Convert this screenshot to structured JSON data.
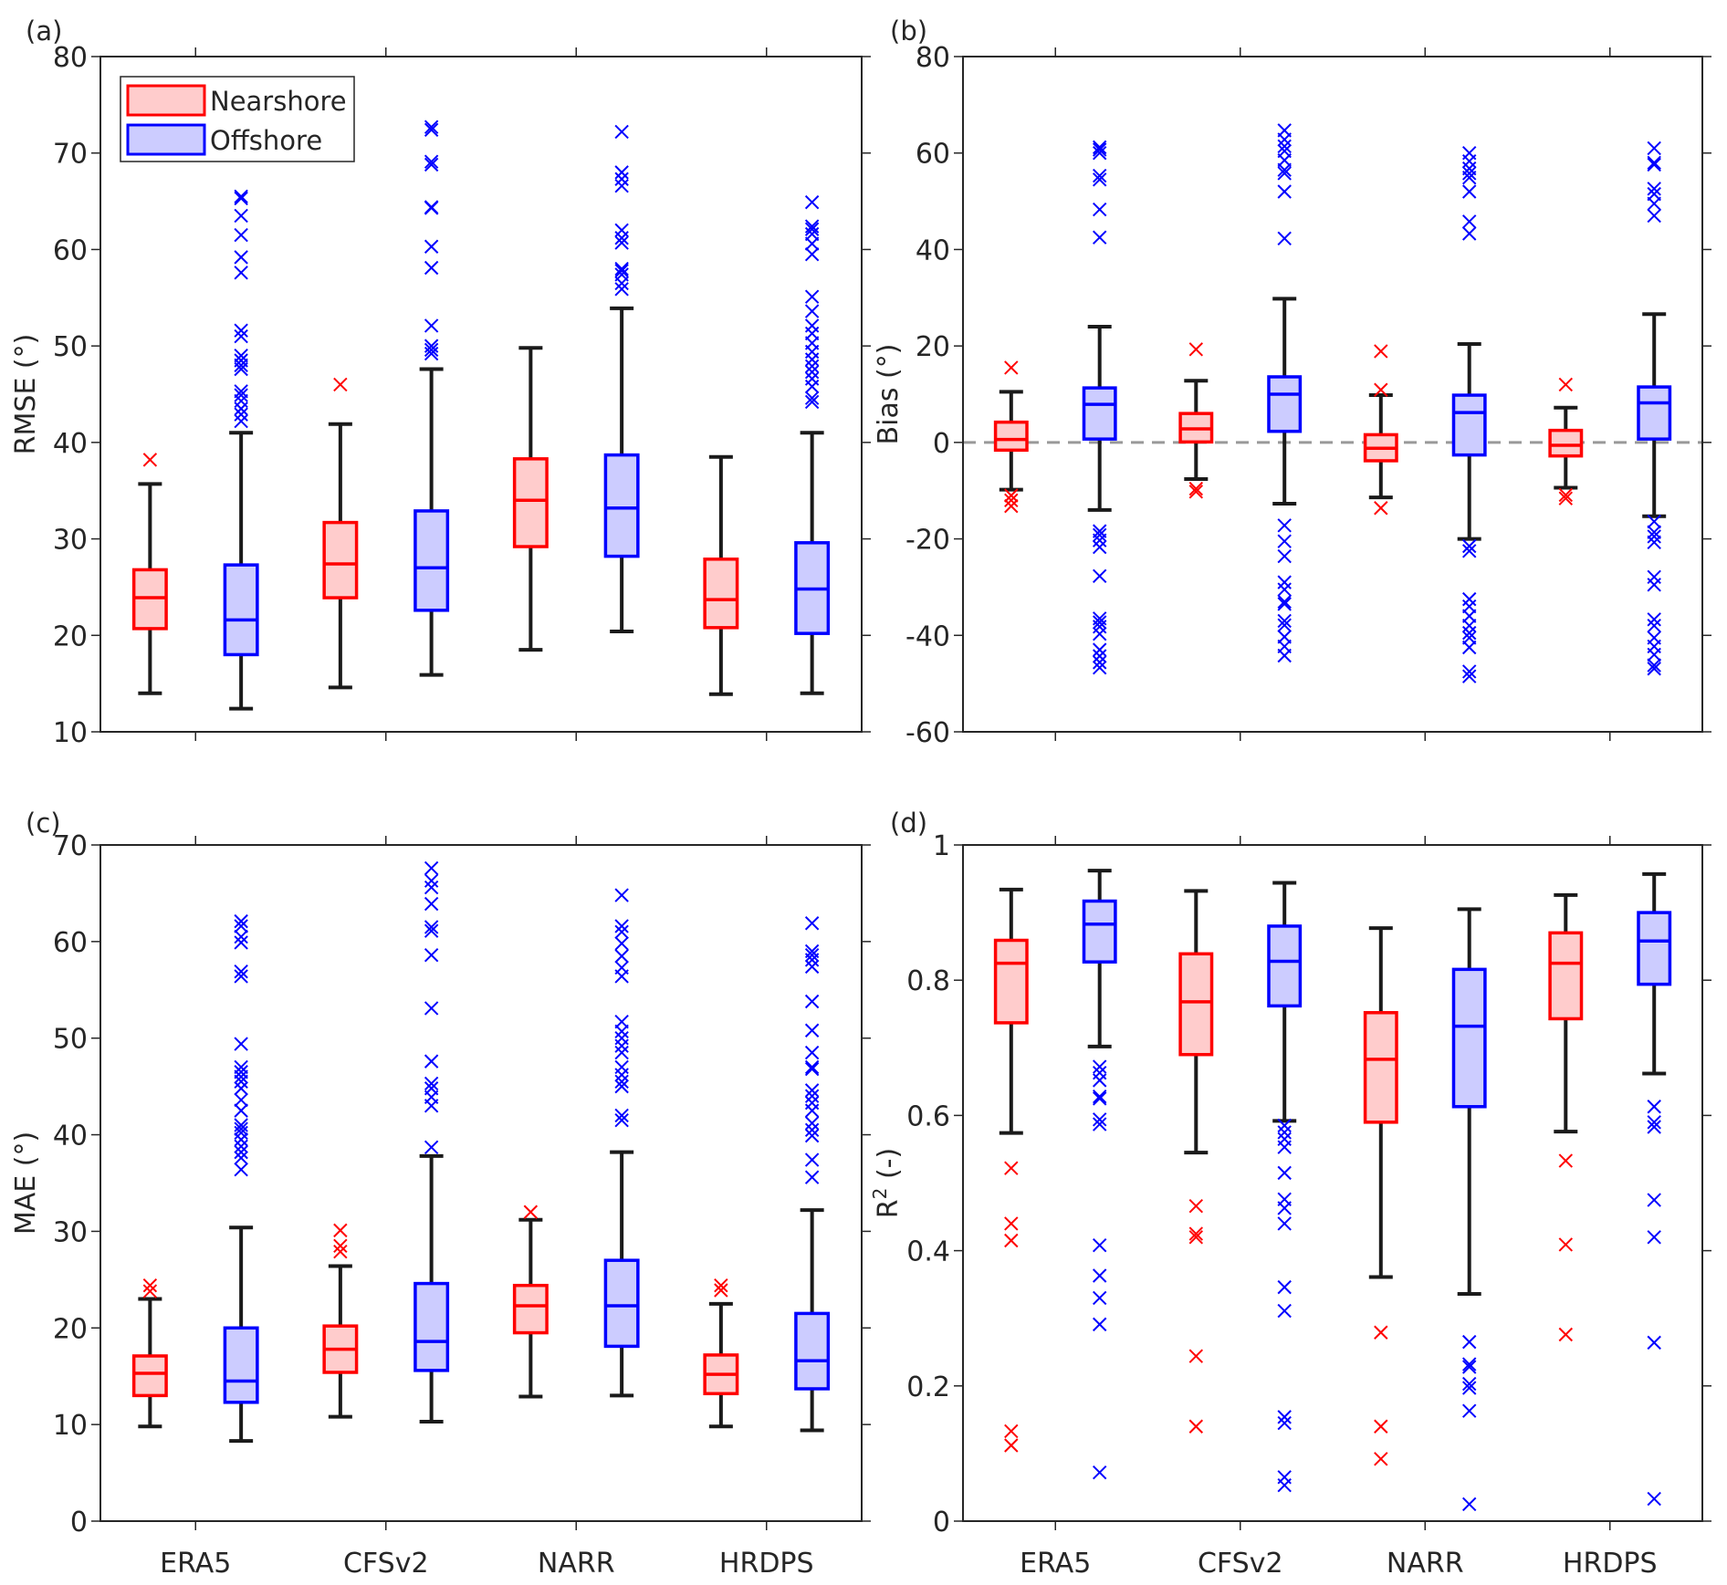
{
  "legend": {
    "entries": [
      {
        "label": "Nearshore",
        "edge": "#ff0000",
        "fill": "#ffcccc"
      },
      {
        "label": "Offshore",
        "edge": "#0000ff",
        "fill": "#ccccff"
      }
    ],
    "placement": "top-left of panel (a)"
  },
  "chart_data": [
    {
      "type": "box",
      "panel": "(a)",
      "ylabel": "RMSE (°)",
      "ylim": [
        10,
        80
      ],
      "yticks": [
        10,
        20,
        30,
        40,
        50,
        60,
        70,
        80
      ],
      "categories": [
        "ERA5",
        "CFSv2",
        "NARR",
        "HRDPS"
      ],
      "reference_line": null,
      "series": [
        {
          "name": "Nearshore",
          "boxes": [
            {
              "low": 14.0,
              "q1": 20.7,
              "median": 23.9,
              "q3": 26.8,
              "high": 35.7,
              "outliers": [
                38.2
              ]
            },
            {
              "low": 14.6,
              "q1": 23.9,
              "median": 27.4,
              "q3": 31.7,
              "high": 41.9,
              "outliers": [
                46.0
              ]
            },
            {
              "low": 18.5,
              "q1": 29.2,
              "median": 34.0,
              "q3": 38.3,
              "high": 49.8,
              "outliers": []
            },
            {
              "low": 13.9,
              "q1": 20.8,
              "median": 23.7,
              "q3": 27.9,
              "high": 38.5,
              "outliers": []
            }
          ]
        },
        {
          "name": "Offshore",
          "boxes": [
            {
              "low": 12.4,
              "q1": 18.0,
              "median": 21.6,
              "q3": 27.3,
              "high": 41.0,
              "outliers": [
                42.2,
                42.9,
                43.5,
                44.3,
                44.9,
                45.3,
                47.6,
                48.0,
                48.5,
                49.0,
                51.0,
                51.6,
                57.6,
                59.2,
                61.5,
                63.5,
                65.3,
                65.5
              ]
            },
            {
              "low": 15.9,
              "q1": 22.6,
              "median": 27.0,
              "q3": 32.9,
              "high": 47.6,
              "outliers": [
                49.2,
                49.6,
                50.0,
                52.1,
                58.1,
                60.3,
                64.3,
                64.4,
                68.8,
                69.1,
                72.4,
                72.7
              ]
            },
            {
              "low": 20.4,
              "q1": 28.2,
              "median": 33.2,
              "q3": 38.7,
              "high": 53.9,
              "outliers": [
                55.9,
                56.5,
                57.4,
                57.8,
                58.0,
                60.7,
                61.2,
                62.0,
                66.6,
                67.3,
                68.0,
                72.2
              ]
            },
            {
              "low": 14.0,
              "q1": 20.2,
              "median": 24.8,
              "q3": 29.6,
              "high": 41.0,
              "outliers": [
                44.2,
                44.6,
                45.8,
                46.6,
                47.3,
                47.9,
                48.6,
                49.4,
                50.3,
                51.3,
                52.1,
                53.6,
                55.1,
                59.5,
                60.6,
                61.6,
                62.1,
                62.4,
                64.9
              ]
            }
          ]
        }
      ]
    },
    {
      "type": "box",
      "panel": "(b)",
      "ylabel": "Bias (°)",
      "ylim": [
        -60,
        80
      ],
      "yticks": [
        -60,
        -40,
        -20,
        0,
        20,
        40,
        60,
        80
      ],
      "categories": [
        "ERA5",
        "CFSv2",
        "NARR",
        "HRDPS"
      ],
      "reference_line": 0,
      "series": [
        {
          "name": "Nearshore",
          "boxes": [
            {
              "low": -9.8,
              "q1": -1.6,
              "median": 0.6,
              "q3": 4.2,
              "high": 10.5,
              "outliers": [
                15.5,
                -11.0,
                -12.0,
                -13.2
              ]
            },
            {
              "low": -7.6,
              "q1": 0.1,
              "median": 2.8,
              "q3": 6.0,
              "high": 12.8,
              "outliers": [
                19.3,
                -9.6,
                -10.2
              ]
            },
            {
              "low": -11.4,
              "q1": -3.8,
              "median": -1.2,
              "q3": 1.6,
              "high": 9.8,
              "outliers": [
                18.9,
                10.9,
                -13.6
              ]
            },
            {
              "low": -9.4,
              "q1": -2.8,
              "median": -0.6,
              "q3": 2.5,
              "high": 7.2,
              "outliers": [
                12.0,
                -10.9,
                -11.6
              ]
            }
          ]
        },
        {
          "name": "Offshore",
          "boxes": [
            {
              "low": -14.0,
              "q1": 0.7,
              "median": 7.9,
              "q3": 11.3,
              "high": 24.0,
              "outliers": [
                42.5,
                48.3,
                54.5,
                55.3,
                60.0,
                60.7,
                61.2,
                -18.4,
                -19.2,
                -20.3,
                -21.7,
                -27.7,
                -36.5,
                -37.3,
                -38.2,
                -39.7,
                -43.0,
                -44.3,
                -45.6,
                -46.7
              ]
            },
            {
              "low": -12.7,
              "q1": 2.3,
              "median": 10.0,
              "q3": 13.6,
              "high": 29.8,
              "outliers": [
                42.3,
                52.0,
                55.8,
                56.5,
                58.5,
                60.4,
                61.4,
                62.8,
                64.7,
                -17.2,
                -20.5,
                -23.6,
                -29.0,
                -30.5,
                -33.0,
                -33.5,
                -37.0,
                -37.9,
                -40.3,
                -42.3,
                -44.2
              ]
            },
            {
              "low": -20.0,
              "q1": -2.6,
              "median": 6.2,
              "q3": 9.8,
              "high": 20.4,
              "outliers": [
                43.3,
                45.8,
                52.0,
                54.9,
                55.8,
                56.8,
                58.3,
                60.0,
                -21.5,
                -22.5,
                -32.5,
                -34.0,
                -36.0,
                -38.0,
                -39.5,
                -40.5,
                -42.5,
                -47.5,
                -48.5
              ]
            },
            {
              "low": -15.3,
              "q1": 0.7,
              "median": 8.2,
              "q3": 11.5,
              "high": 26.6,
              "outliers": [
                47.0,
                49.5,
                51.5,
                52.6,
                57.6,
                58.0,
                61.0,
                -16.4,
                -18.6,
                -19.5,
                -20.7,
                -27.9,
                -29.5,
                -36.7,
                -38.0,
                -40.5,
                -42.3,
                -44.0,
                -46.2,
                -46.9
              ]
            }
          ]
        }
      ]
    },
    {
      "type": "box",
      "panel": "(c)",
      "ylabel": "MAE (°)",
      "ylim": [
        0,
        70
      ],
      "yticks": [
        0,
        10,
        20,
        30,
        40,
        50,
        60,
        70
      ],
      "categories": [
        "ERA5",
        "CFSv2",
        "NARR",
        "HRDPS"
      ],
      "reference_line": null,
      "series": [
        {
          "name": "Nearshore",
          "boxes": [
            {
              "low": 9.8,
              "q1": 13.0,
              "median": 15.3,
              "q3": 17.1,
              "high": 23.0,
              "outliers": [
                23.8,
                24.4
              ]
            },
            {
              "low": 10.8,
              "q1": 15.4,
              "median": 17.8,
              "q3": 20.2,
              "high": 26.4,
              "outliers": [
                27.9,
                28.5,
                30.1
              ]
            },
            {
              "low": 12.9,
              "q1": 19.5,
              "median": 22.3,
              "q3": 24.4,
              "high": 31.2,
              "outliers": [
                32.0
              ]
            },
            {
              "low": 9.8,
              "q1": 13.2,
              "median": 15.2,
              "q3": 17.2,
              "high": 22.5,
              "outliers": [
                23.9,
                24.4
              ]
            }
          ]
        },
        {
          "name": "Offshore",
          "boxes": [
            {
              "low": 8.3,
              "q1": 12.3,
              "median": 14.5,
              "q3": 20.0,
              "high": 30.4,
              "outliers": [
                36.4,
                37.6,
                38.2,
                38.8,
                39.5,
                40.2,
                40.6,
                41.0,
                42.5,
                43.6,
                44.8,
                45.5,
                46.0,
                46.5,
                47.0,
                49.4,
                56.4,
                56.9,
                59.9,
                60.5,
                61.6,
                62.1
              ]
            },
            {
              "low": 10.3,
              "q1": 15.6,
              "median": 18.6,
              "q3": 24.6,
              "high": 37.8,
              "outliers": [
                38.7,
                43.0,
                43.9,
                44.8,
                45.3,
                47.6,
                53.1,
                58.6,
                61.1,
                61.5,
                63.9,
                65.6,
                66.3,
                67.6
              ]
            },
            {
              "low": 13.0,
              "q1": 18.1,
              "median": 22.3,
              "q3": 27.0,
              "high": 38.2,
              "outliers": [
                41.5,
                42.0,
                45.0,
                45.5,
                46.2,
                47.0,
                48.5,
                49.2,
                50.0,
                50.7,
                51.7,
                56.4,
                57.3,
                58.5,
                59.8,
                61.0,
                61.6,
                64.8
              ]
            },
            {
              "low": 9.4,
              "q1": 13.7,
              "median": 16.6,
              "q3": 21.5,
              "high": 32.2,
              "outliers": [
                35.6,
                37.4,
                39.9,
                40.5,
                41.2,
                42.5,
                43.3,
                44.0,
                44.6,
                46.8,
                47.0,
                48.5,
                50.8,
                53.8,
                57.4,
                58.1,
                58.6,
                59.0,
                61.9
              ]
            }
          ]
        }
      ]
    },
    {
      "type": "box",
      "panel": "(d)",
      "ylabel": "R² (-)",
      "ylim": [
        0,
        1
      ],
      "yticks": [
        0,
        0.2,
        0.4,
        0.6,
        0.8,
        1
      ],
      "categories": [
        "ERA5",
        "CFSv2",
        "NARR",
        "HRDPS"
      ],
      "reference_line": null,
      "series": [
        {
          "name": "Nearshore",
          "boxes": [
            {
              "low": 0.574,
              "q1": 0.737,
              "median": 0.825,
              "q3": 0.859,
              "high": 0.934,
              "outliers": [
                0.522,
                0.44,
                0.415,
                0.133,
                0.112
              ]
            },
            {
              "low": 0.545,
              "q1": 0.69,
              "median": 0.768,
              "q3": 0.839,
              "high": 0.932,
              "outliers": [
                0.466,
                0.425,
                0.42,
                0.244,
                0.14
              ]
            },
            {
              "low": 0.361,
              "q1": 0.59,
              "median": 0.683,
              "q3": 0.752,
              "high": 0.877,
              "outliers": [
                0.279,
                0.14,
                0.092
              ]
            },
            {
              "low": 0.576,
              "q1": 0.743,
              "median": 0.825,
              "q3": 0.87,
              "high": 0.926,
              "outliers": [
                0.533,
                0.409,
                0.276
              ]
            }
          ]
        },
        {
          "name": "Offshore",
          "boxes": [
            {
              "low": 0.702,
              "q1": 0.827,
              "median": 0.883,
              "q3": 0.917,
              "high": 0.962,
              "outliers": [
                0.672,
                0.663,
                0.652,
                0.628,
                0.625,
                0.594,
                0.587,
                0.408,
                0.363,
                0.33,
                0.291,
                0.072
              ]
            },
            {
              "low": 0.592,
              "q1": 0.762,
              "median": 0.828,
              "q3": 0.88,
              "high": 0.944,
              "outliers": [
                0.585,
                0.575,
                0.565,
                0.553,
                0.515,
                0.476,
                0.463,
                0.44,
                0.346,
                0.311,
                0.154,
                0.145,
                0.065,
                0.053
              ]
            },
            {
              "low": 0.336,
              "q1": 0.613,
              "median": 0.732,
              "q3": 0.816,
              "high": 0.905,
              "outliers": [
                0.265,
                0.232,
                0.228,
                0.203,
                0.197,
                0.163,
                0.025
              ]
            },
            {
              "low": 0.662,
              "q1": 0.794,
              "median": 0.858,
              "q3": 0.9,
              "high": 0.957,
              "outliers": [
                0.613,
                0.59,
                0.583,
                0.475,
                0.42,
                0.264,
                0.033
              ]
            }
          ]
        }
      ]
    }
  ]
}
